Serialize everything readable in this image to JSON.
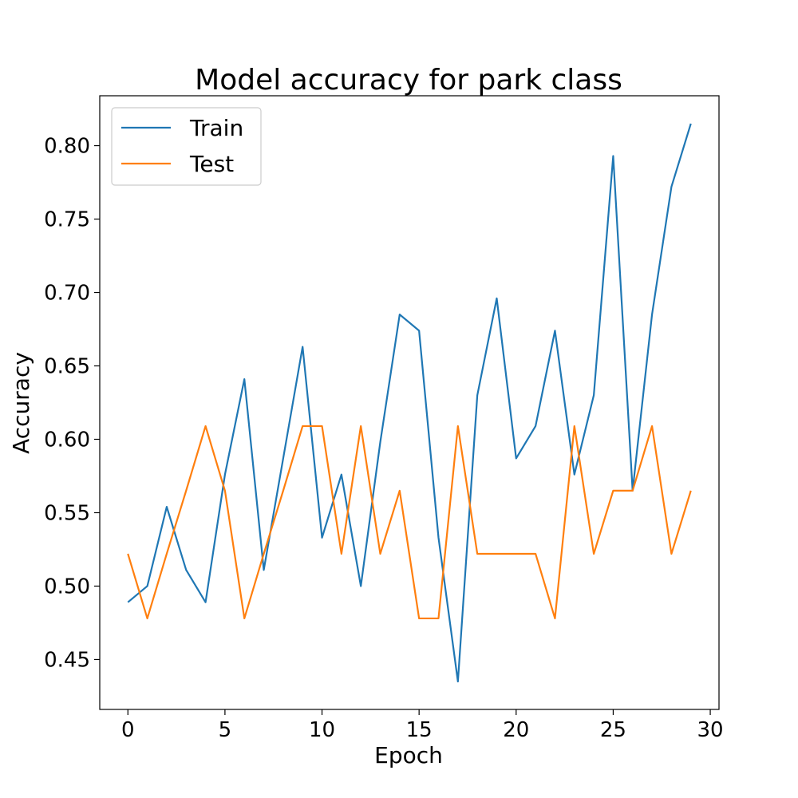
{
  "chart_data": {
    "type": "line",
    "title": "Model accuracy for park class",
    "xlabel": "Epoch",
    "ylabel": "Accuracy",
    "xlim": [
      -1.45,
      30.45
    ],
    "ylim": [
      0.416,
      0.834
    ],
    "xticks": [
      0,
      5,
      10,
      15,
      20,
      25,
      30
    ],
    "yticks": [
      0.45,
      0.5,
      0.55,
      0.6,
      0.65,
      0.7,
      0.75,
      0.8
    ],
    "xtick_labels": [
      "0",
      "5",
      "10",
      "15",
      "20",
      "25",
      "30"
    ],
    "ytick_labels": [
      "0.45",
      "0.50",
      "0.55",
      "0.60",
      "0.65",
      "0.70",
      "0.75",
      "0.80"
    ],
    "grid": false,
    "legend": "upper-left",
    "x": [
      0,
      1,
      2,
      3,
      4,
      5,
      6,
      7,
      8,
      9,
      10,
      11,
      12,
      13,
      14,
      15,
      16,
      17,
      18,
      19,
      20,
      21,
      22,
      23,
      24,
      25,
      26,
      27,
      28,
      29
    ],
    "series": [
      {
        "name": "Train",
        "color": "#1f77b4",
        "values": [
          0.489,
          0.5,
          0.554,
          0.511,
          0.489,
          0.576,
          0.641,
          0.511,
          0.587,
          0.663,
          0.533,
          0.576,
          0.5,
          0.598,
          0.685,
          0.674,
          0.533,
          0.435,
          0.63,
          0.696,
          0.587,
          0.609,
          0.674,
          0.576,
          0.63,
          0.793,
          0.565,
          0.685,
          0.772,
          0.815
        ]
      },
      {
        "name": "Test",
        "color": "#ff7f0e",
        "values": [
          0.522,
          0.478,
          0.522,
          0.565,
          0.609,
          0.565,
          0.478,
          0.522,
          0.565,
          0.609,
          0.609,
          0.522,
          0.609,
          0.522,
          0.565,
          0.478,
          0.478,
          0.609,
          0.522,
          0.522,
          0.522,
          0.522,
          0.478,
          0.609,
          0.522,
          0.565,
          0.565,
          0.609,
          0.522,
          0.565
        ]
      }
    ]
  }
}
